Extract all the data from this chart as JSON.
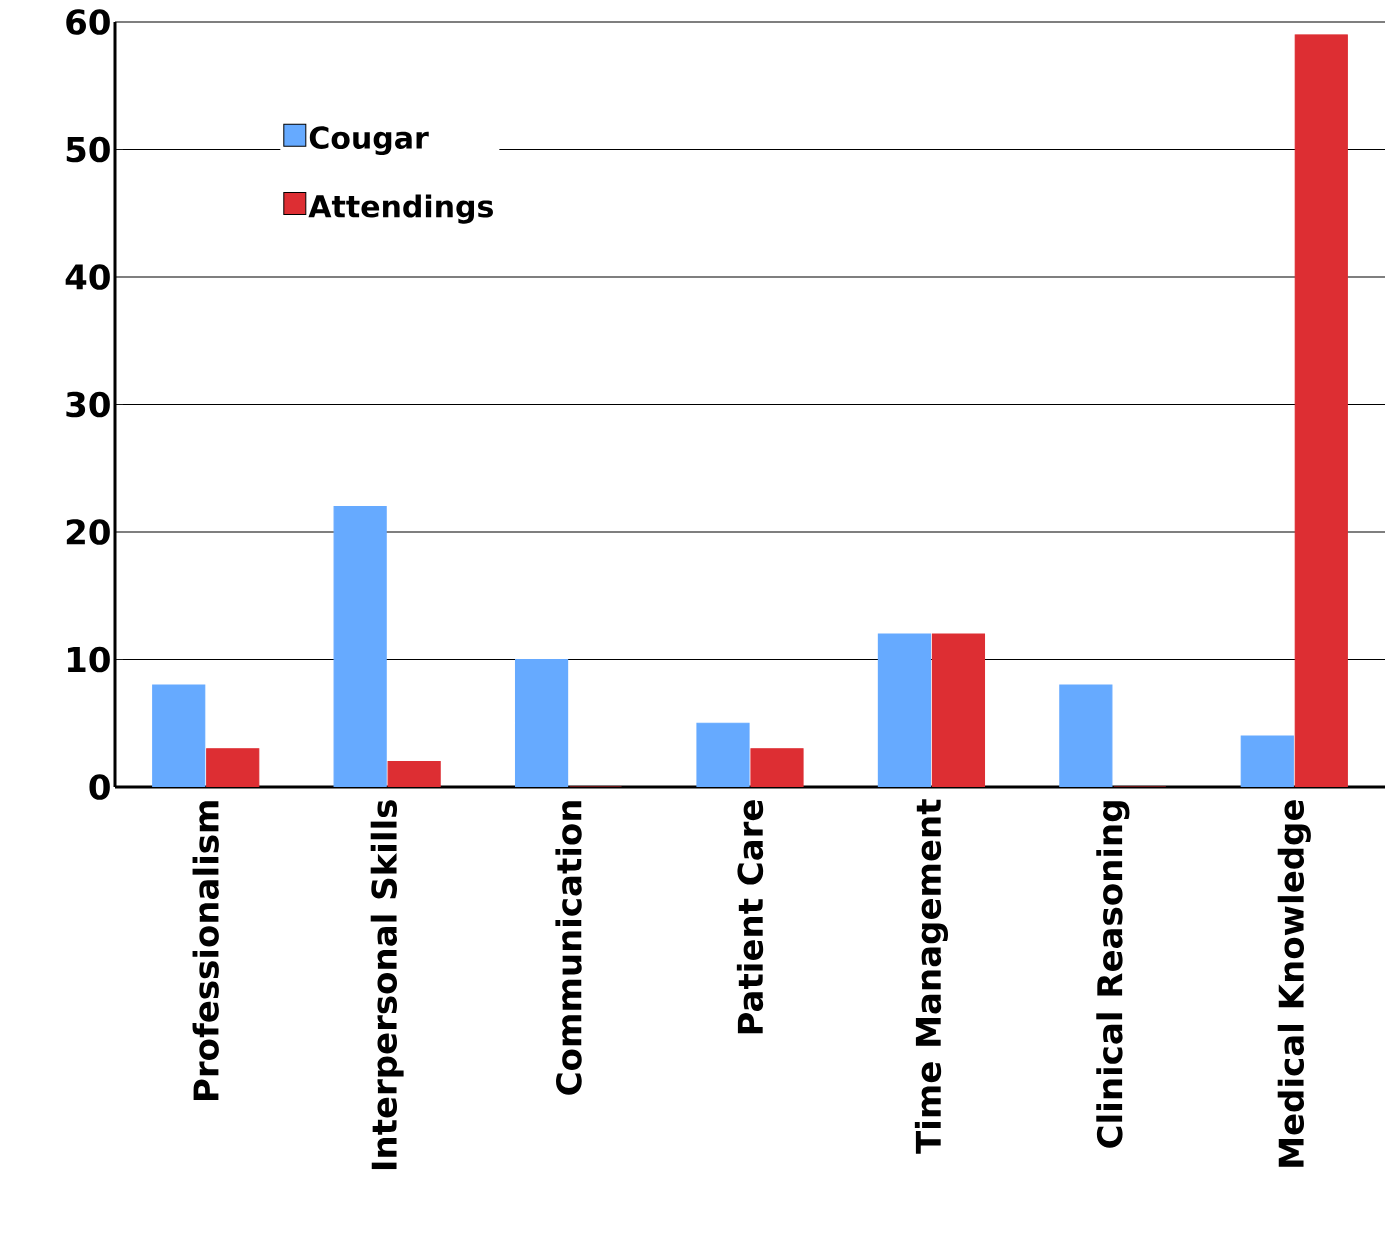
{
  "chart_data": {
    "type": "bar",
    "categories": [
      "Professionalism",
      "Interpersonal Skills",
      "Communication",
      "Patient Care",
      "Time Management",
      "Clinical Reasoning",
      "Medical Knowledge"
    ],
    "series": [
      {
        "name": "Cougar",
        "color": "#66aaff",
        "values": [
          8,
          22,
          10,
          5,
          12,
          8,
          4
        ]
      },
      {
        "name": "Attendings",
        "color": "#dd2e33",
        "values": [
          3,
          2,
          0,
          3,
          12,
          0,
          59
        ]
      }
    ],
    "ylim": [
      0,
      60
    ],
    "yticks": [
      0,
      10,
      20,
      30,
      40,
      50,
      60
    ],
    "grid": "y",
    "legend": "top left"
  }
}
